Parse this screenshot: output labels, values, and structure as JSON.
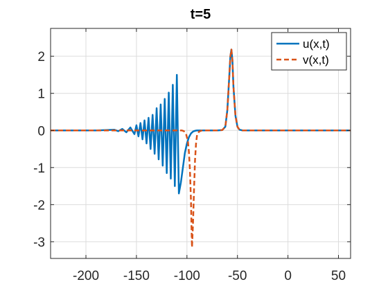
{
  "chart_data": {
    "type": "line",
    "title": "t=5",
    "xlabel": "",
    "ylabel": "",
    "xlim": [
      -235,
      62
    ],
    "ylim": [
      -3.45,
      2.75
    ],
    "x_ticks": [
      -200,
      -150,
      -100,
      -50,
      0,
      50
    ],
    "y_ticks": [
      -3,
      -2,
      -1,
      0,
      1,
      2
    ],
    "grid": true,
    "legend_position": "top-right",
    "series": [
      {
        "name": "u(x,t)",
        "color": "#0072BD",
        "style": "solid",
        "x": [
          -235,
          -200,
          -190,
          -180,
          -172,
          -168,
          -164,
          -160,
          -156,
          -152,
          -150,
          -148,
          -146,
          -144,
          -142,
          -140,
          -138,
          -136,
          -134,
          -132,
          -130,
          -128,
          -126,
          -124,
          -122,
          -120,
          -118,
          -116,
          -114,
          -112,
          -110,
          -108,
          -106,
          -104,
          -102,
          -100,
          -98,
          -96,
          -94,
          -92,
          -90,
          -85,
          -80,
          -70,
          -65,
          -62,
          -60,
          -58,
          -57,
          -56,
          -55,
          -54,
          -52,
          -50,
          -48,
          -45,
          -40,
          -20,
          0,
          62
        ],
        "y": [
          0.0,
          0.0,
          0.0,
          0.01,
          0.02,
          -0.02,
          0.04,
          -0.05,
          0.08,
          -0.1,
          0.14,
          -0.16,
          0.2,
          -0.24,
          0.27,
          -0.35,
          0.34,
          -0.5,
          0.42,
          -0.63,
          0.6,
          -0.78,
          0.7,
          -0.95,
          0.85,
          -1.15,
          1.02,
          -1.3,
          1.23,
          -1.5,
          1.5,
          -1.7,
          -1.4,
          -1.0,
          -0.6,
          -0.35,
          -0.18,
          -0.08,
          -0.03,
          -0.01,
          0.0,
          0.0,
          0.0,
          0.0,
          0.01,
          0.1,
          0.55,
          1.5,
          2.0,
          2.18,
          1.9,
          1.2,
          0.4,
          0.1,
          0.02,
          0.0,
          0.0,
          0.0,
          0.0,
          0.0
        ]
      },
      {
        "name": "v(x,t)",
        "color": "#D95319",
        "style": "dashed",
        "x": [
          -235,
          -110,
          -105,
          -103,
          -101,
          -99,
          -98,
          -97,
          -96,
          -95.5,
          -95,
          -94,
          -93,
          -92,
          -91,
          -90,
          -88,
          -85,
          -80,
          -70,
          -65,
          -62,
          -60,
          -58,
          -57,
          -56,
          -55,
          -54,
          -52,
          -50,
          -48,
          -45,
          -40,
          -20,
          0,
          62
        ],
        "y": [
          0.0,
          0.0,
          0.0,
          -0.02,
          -0.08,
          -0.3,
          -0.6,
          -1.1,
          -1.9,
          -2.6,
          -3.15,
          -2.5,
          -1.6,
          -0.8,
          -0.35,
          -0.12,
          -0.03,
          0.0,
          0.0,
          0.0,
          0.01,
          0.1,
          0.55,
          1.5,
          2.0,
          2.18,
          1.9,
          1.2,
          0.4,
          0.1,
          0.02,
          0.0,
          0.0,
          0.0,
          0.0,
          0.0
        ]
      }
    ]
  }
}
